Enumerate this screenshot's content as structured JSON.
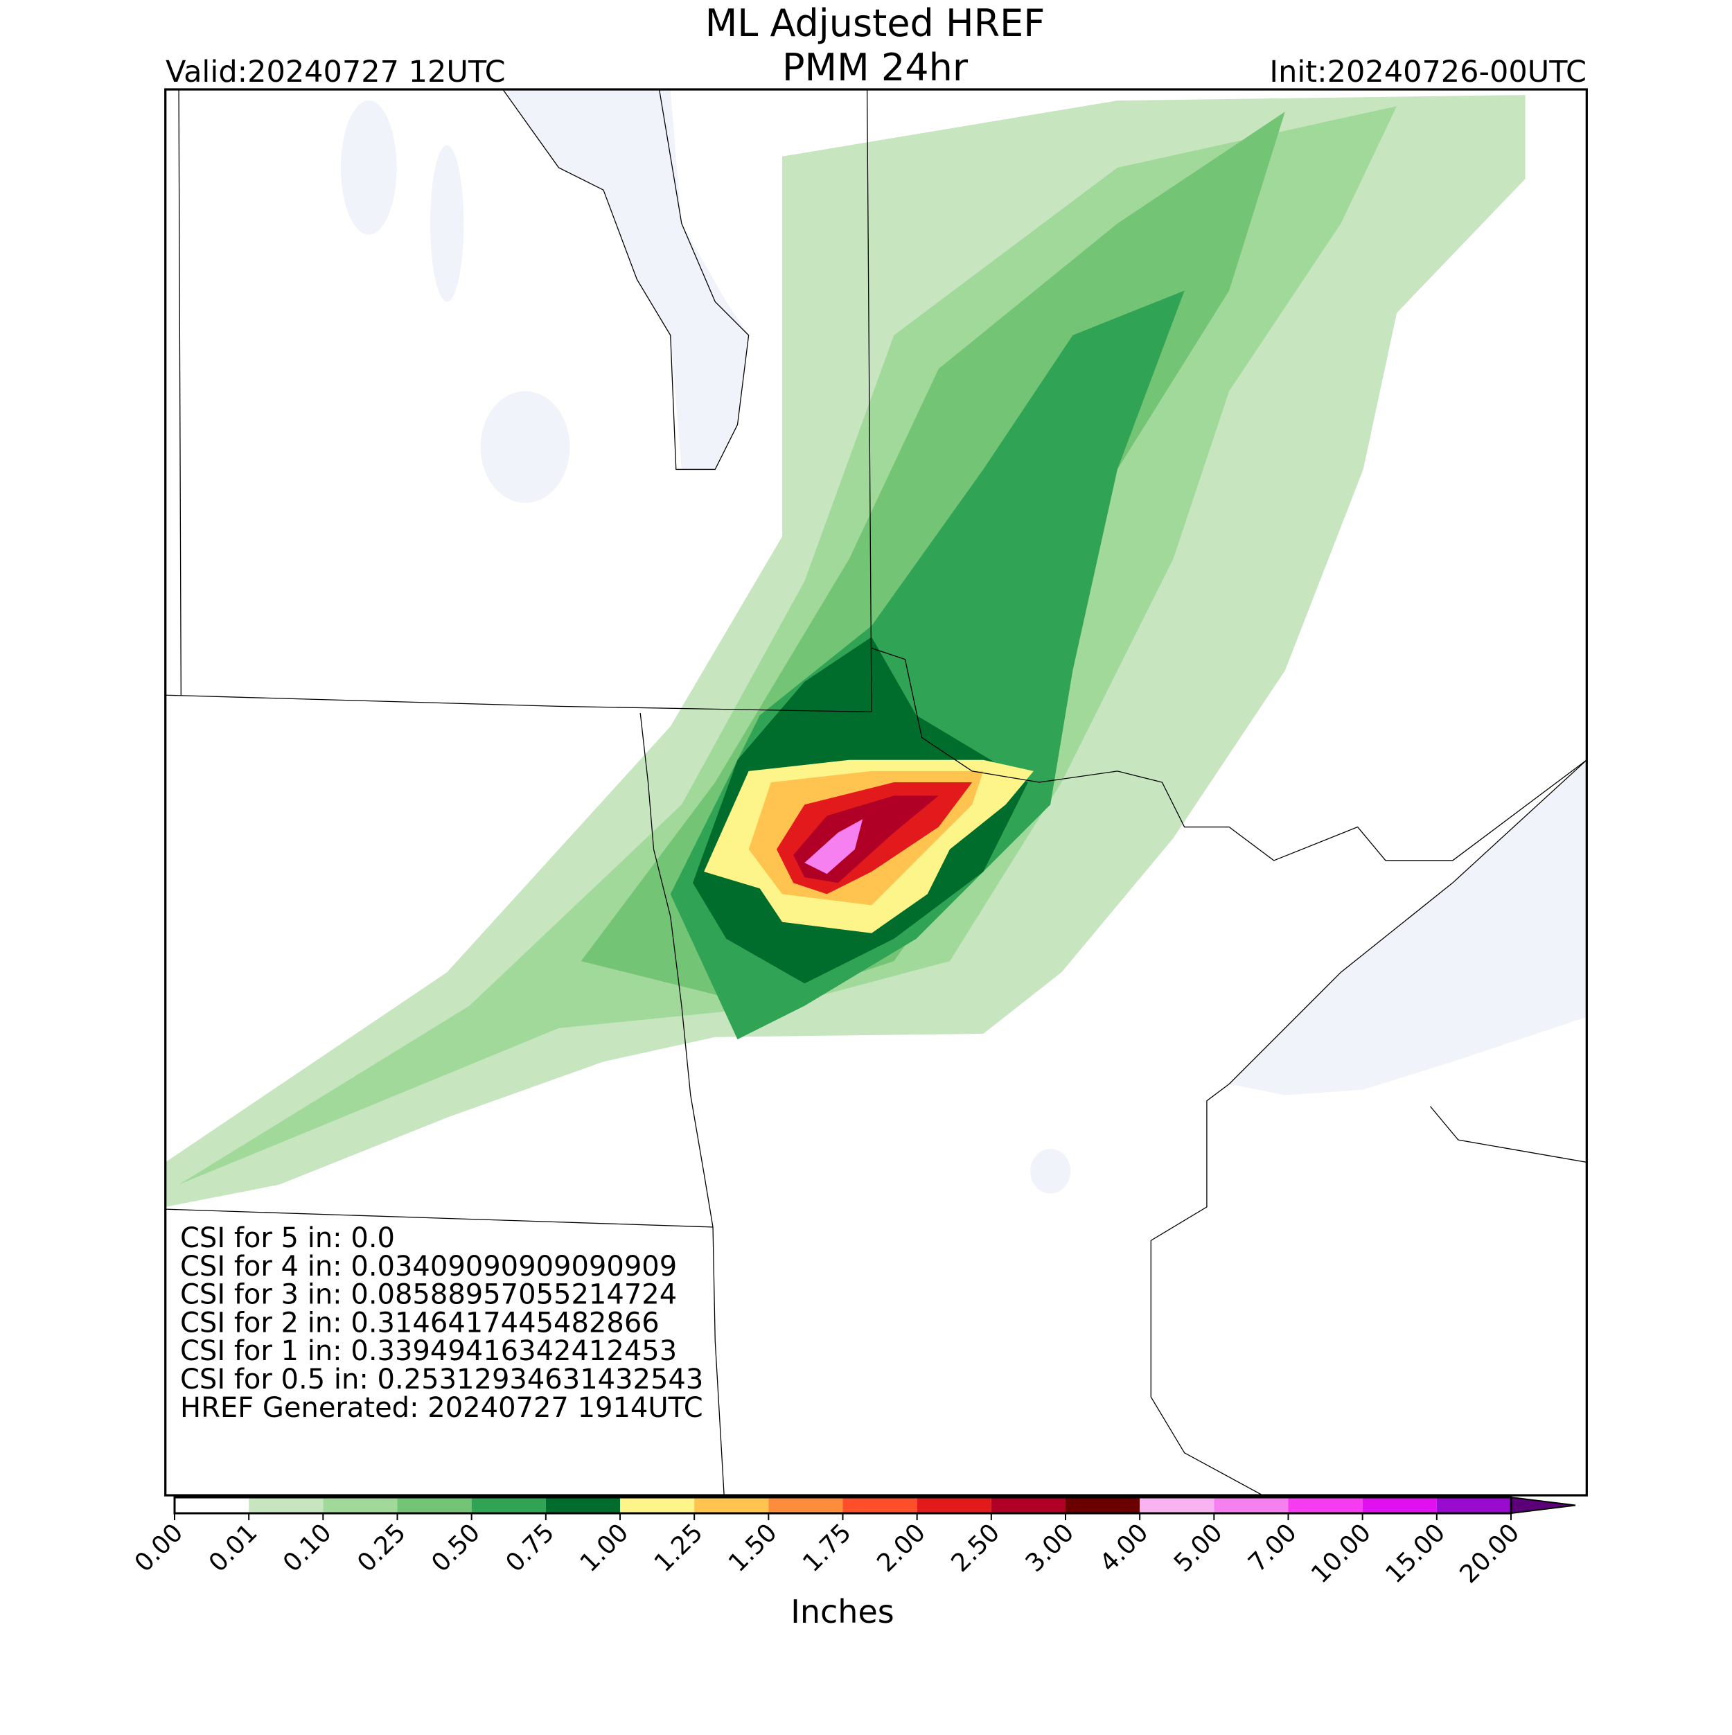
{
  "title": [
    "ML Adjusted HREF",
    "PMM 24hr"
  ],
  "valid": "Valid:20240727 12UTC",
  "init": "Init:20240726-00UTC",
  "annotations": [
    "CSI for 5 in: 0.0",
    "CSI for 4 in: 0.03409090909090909",
    "CSI for 3 in: 0.08588957055214724",
    "CSI for 2 in: 0.3146417445482866",
    "CSI for 1 in: 0.33949416342412453",
    "CSI for 0.5 in: 0.25312934631432543",
    "HREF Generated: 20240727 1914UTC"
  ],
  "colorbar": {
    "label": "Inches",
    "ticks": [
      "0.00",
      "0.01",
      "0.10",
      "0.25",
      "0.50",
      "0.75",
      "1.00",
      "1.25",
      "1.50",
      "1.75",
      "2.00",
      "2.50",
      "3.00",
      "4.00",
      "5.00",
      "7.00",
      "10.00",
      "15.00",
      "20.00"
    ],
    "colors": [
      "#ffffff",
      "#c7e6c0",
      "#a1d99b",
      "#74c476",
      "#31a354",
      "#006d2c",
      "#fef58a",
      "#fec44f",
      "#fd8d3c",
      "#fc4e2a",
      "#e31a1c",
      "#b10026",
      "#6b0000",
      "#f9b3f0",
      "#f780f0",
      "#f53cf0",
      "#e010f0",
      "#9a0bd0"
    ],
    "extend_color": "#5c007a"
  }
}
